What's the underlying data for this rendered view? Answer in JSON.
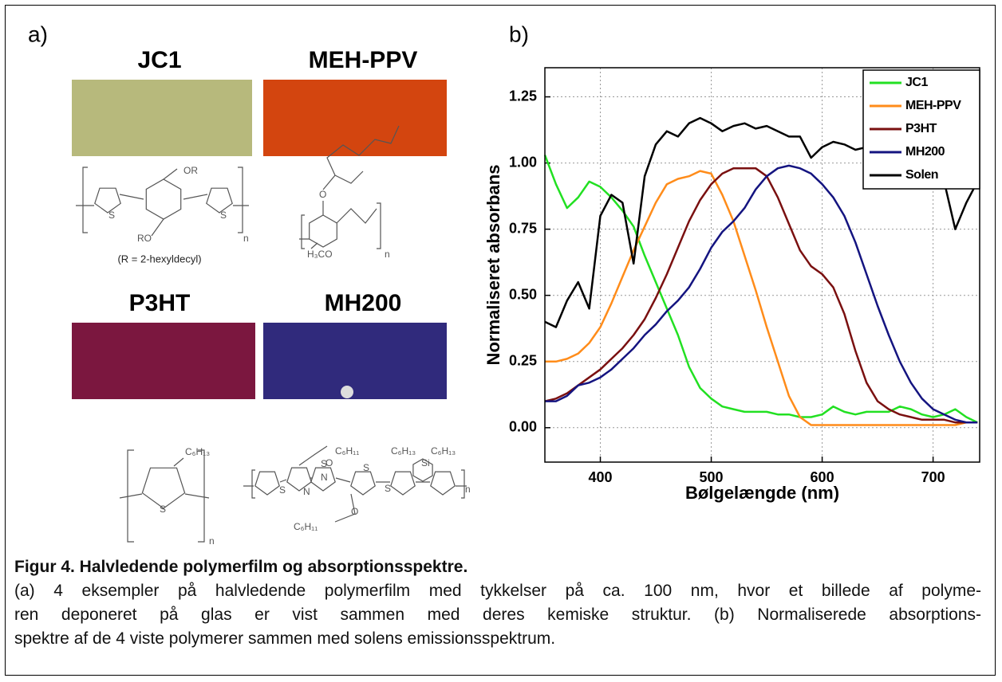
{
  "panel_a": {
    "label": "a)",
    "films": [
      {
        "name": "JC1",
        "structure_labels": [
          "OR",
          "RO",
          "S",
          "S",
          "n"
        ],
        "note": "(R = 2-hexyldecyl)"
      },
      {
        "name": "MEH-PPV",
        "structure_labels": [
          "O",
          "H₃CO",
          "n"
        ]
      },
      {
        "name": "P3HT",
        "structure_labels": [
          "C₆H₁₃",
          "S",
          "n"
        ]
      },
      {
        "name": "MH200",
        "structure_labels": [
          "C₆H₁₁",
          "O",
          "S",
          "N",
          "N",
          "S",
          "S",
          "Si",
          "C₆H₁₃",
          "C₆H₁₃",
          "S",
          "O",
          "C₆H₁₁",
          "n"
        ]
      }
    ]
  },
  "chart_data": {
    "type": "line",
    "panel_label": "b)",
    "x_label": "Bølgelængde (nm)",
    "y_label": "Normaliseret absorbans",
    "x": [
      350,
      360,
      370,
      380,
      390,
      400,
      410,
      420,
      430,
      440,
      450,
      460,
      470,
      480,
      490,
      500,
      510,
      520,
      530,
      540,
      550,
      560,
      570,
      580,
      590,
      600,
      610,
      620,
      630,
      640,
      650,
      660,
      670,
      680,
      690,
      700,
      710,
      720,
      730,
      740
    ],
    "series": [
      {
        "name": "JC1",
        "color": "#22e022",
        "values": [
          1.03,
          0.92,
          0.83,
          0.87,
          0.93,
          0.91,
          0.87,
          0.82,
          0.76,
          0.65,
          0.55,
          0.45,
          0.35,
          0.23,
          0.15,
          0.11,
          0.08,
          0.07,
          0.06,
          0.06,
          0.06,
          0.05,
          0.05,
          0.04,
          0.04,
          0.05,
          0.08,
          0.06,
          0.05,
          0.06,
          0.06,
          0.06,
          0.08,
          0.07,
          0.05,
          0.04,
          0.05,
          0.07,
          0.04,
          0.02
        ]
      },
      {
        "name": "MEH-PPV",
        "color": "#ff8c1a",
        "values": [
          0.25,
          0.25,
          0.26,
          0.28,
          0.32,
          0.38,
          0.47,
          0.57,
          0.67,
          0.76,
          0.85,
          0.92,
          0.94,
          0.95,
          0.97,
          0.96,
          0.88,
          0.78,
          0.65,
          0.52,
          0.38,
          0.25,
          0.12,
          0.04,
          0.01,
          0.01,
          0.01,
          0.01,
          0.01,
          0.01,
          0.01,
          0.01,
          0.01,
          0.01,
          0.01,
          0.01,
          0.01,
          0.01,
          0.02,
          0.02
        ]
      },
      {
        "name": "P3HT",
        "color": "#7a1010",
        "values": [
          0.1,
          0.11,
          0.13,
          0.16,
          0.19,
          0.22,
          0.26,
          0.3,
          0.35,
          0.41,
          0.49,
          0.58,
          0.68,
          0.78,
          0.86,
          0.92,
          0.96,
          0.98,
          0.98,
          0.98,
          0.95,
          0.87,
          0.77,
          0.67,
          0.61,
          0.58,
          0.53,
          0.43,
          0.29,
          0.17,
          0.1,
          0.07,
          0.05,
          0.04,
          0.03,
          0.03,
          0.03,
          0.02,
          0.02,
          0.02
        ]
      },
      {
        "name": "MH200",
        "color": "#141480",
        "values": [
          0.1,
          0.1,
          0.12,
          0.16,
          0.17,
          0.19,
          0.22,
          0.26,
          0.3,
          0.35,
          0.39,
          0.44,
          0.48,
          0.53,
          0.6,
          0.68,
          0.74,
          0.78,
          0.83,
          0.9,
          0.95,
          0.98,
          0.99,
          0.98,
          0.96,
          0.92,
          0.87,
          0.8,
          0.7,
          0.58,
          0.46,
          0.35,
          0.25,
          0.17,
          0.11,
          0.07,
          0.05,
          0.03,
          0.02,
          0.02
        ]
      },
      {
        "name": "Solen",
        "color": "#000000",
        "values": [
          0.4,
          0.38,
          0.48,
          0.55,
          0.45,
          0.8,
          0.88,
          0.85,
          0.62,
          0.95,
          1.07,
          1.12,
          1.1,
          1.15,
          1.17,
          1.15,
          1.12,
          1.14,
          1.15,
          1.13,
          1.14,
          1.12,
          1.1,
          1.1,
          1.02,
          1.06,
          1.08,
          1.07,
          1.05,
          1.06,
          1.07,
          1.06,
          1.02,
          1.0,
          0.95,
          0.97,
          0.93,
          0.75,
          0.85,
          0.93
        ]
      }
    ],
    "xlim": [
      350,
      742
    ],
    "ylim": [
      -0.13,
      1.36
    ],
    "xticks": [
      400,
      500,
      600,
      700
    ],
    "yticks": [
      {
        "value": 0,
        "label": "0.00"
      },
      {
        "value": 0.25,
        "label": "0.25"
      },
      {
        "value": 0.5,
        "label": "0.50"
      },
      {
        "value": 0.75,
        "label": "0.75"
      },
      {
        "value": 1,
        "label": "1.00"
      },
      {
        "value": 1.25,
        "label": "1.25"
      }
    ],
    "grid": true,
    "legend": "upper right"
  },
  "caption": {
    "title": "Figur 4. Halvledende polymerfilm og absorptionsspektre.",
    "lines": [
      "(a) 4 eksempler på halvledende polymerfilm med tykkelser på ca. 100 nm, hvor et billede af polyme-",
      "ren deponeret på glas er vist sammen med deres kemiske struktur. (b) Normaliserede absorptions-",
      "spektre af de 4 viste polymerer sammen med solens emissionsspektrum."
    ]
  }
}
